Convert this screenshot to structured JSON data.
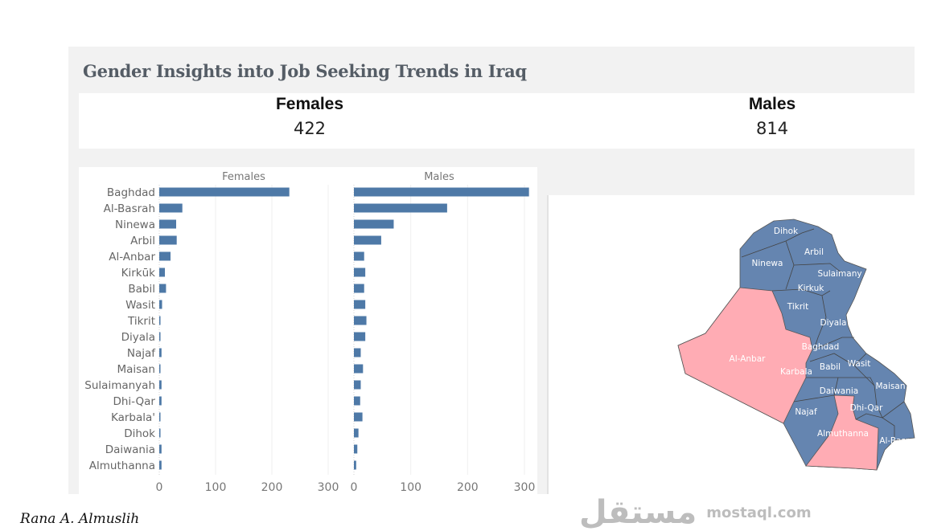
{
  "title": "Gender Insights into Job Seeking Trends in Iraq",
  "kpis": {
    "females": {
      "label": "Females",
      "value": "422"
    },
    "males": {
      "label": "Males",
      "value": "814"
    }
  },
  "chart_data": {
    "type": "bar",
    "orientation": "horizontal",
    "categories": [
      "Baghdad",
      "Al-Basrah",
      "Ninewa",
      "Arbil",
      "Al-Anbar",
      "Kirkūk",
      "Babil",
      "Wasit",
      "Tikrit",
      "Diyala",
      "Najaf",
      "Maisan",
      "Sulaimanyah",
      "Dhi-Qar",
      "Karbala'",
      "Dihok",
      "Daiwania",
      "Almuthanna"
    ],
    "series": [
      {
        "name": "Females",
        "values": [
          231,
          41,
          30,
          31,
          20,
          10,
          12,
          5,
          1,
          2,
          4,
          1,
          4,
          4,
          1,
          2,
          4,
          4
        ]
      },
      {
        "name": "Males",
        "values": [
          308,
          164,
          70,
          48,
          18,
          20,
          18,
          20,
          22,
          20,
          12,
          16,
          12,
          11,
          15,
          8,
          6,
          4
        ]
      }
    ],
    "xlim": [
      0,
      300
    ],
    "xticks": [
      "0",
      "100",
      "200",
      "300"
    ],
    "grid": true,
    "bar_color": "#4e79a7"
  },
  "map": {
    "colors": {
      "high": "#6585b0",
      "low": "#ffacb4"
    },
    "labels": [
      "Dihok",
      "Arbil",
      "Ninewa",
      "Sulaimany",
      "Kirkuk",
      "Tikrit",
      "Diyala",
      "Baghdad",
      "Al-Anbar",
      "Karbala",
      "Babil",
      "Wasit",
      "Maisan",
      "Daiwania",
      "Dhi-Qar",
      "Najaf",
      "Almuthanna",
      "Al-Basra"
    ],
    "highlighted": [
      "Al-Anbar",
      "Almuthanna"
    ]
  },
  "watermark": {
    "arabic": "مستقل",
    "latin": "mostaql.com"
  },
  "signature": "Rana A. Almuslih"
}
